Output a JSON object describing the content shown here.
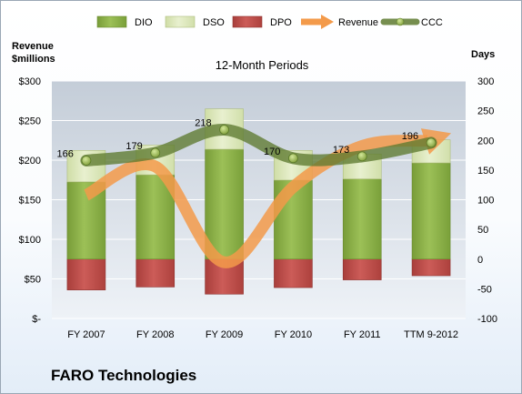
{
  "company": "FARO Technologies",
  "chart_data": {
    "type": "bar",
    "subtitle": "12-Month Periods",
    "categories": [
      "FY 2007",
      "FY 2008",
      "FY 2009",
      "FY 2010",
      "FY 2011",
      "TTM 9-2012"
    ],
    "left_axis": {
      "title_lines": [
        "Revenue",
        "$millions"
      ],
      "ticks": [
        0,
        50,
        100,
        150,
        200,
        250,
        300
      ],
      "tick_labels": [
        "$-",
        "$50",
        "$100",
        "$150",
        "$200",
        "$250",
        "$300"
      ],
      "range": [
        0,
        300
      ]
    },
    "right_axis": {
      "title": "Days",
      "ticks": [
        -100,
        -50,
        0,
        50,
        100,
        150,
        200,
        250,
        300
      ],
      "tick_labels": [
        "-100",
        "-50",
        "0",
        "50",
        "100",
        "150",
        "200",
        "250",
        "300"
      ],
      "range": [
        -100,
        300
      ]
    },
    "series": [
      {
        "name": "DIO",
        "axis": "right",
        "kind": "stacked-bar",
        "color": "#8cb04a",
        "values": [
          130,
          142,
          185,
          133,
          135,
          162
        ]
      },
      {
        "name": "DSO",
        "axis": "right",
        "kind": "stacked-bar",
        "color": "#d8e6b3",
        "values": [
          53,
          50,
          68,
          50,
          42,
          39
        ]
      },
      {
        "name": "DPO",
        "axis": "right",
        "kind": "negative-bar",
        "color": "#c0504d",
        "values": [
          -52,
          -47,
          -59,
          -48,
          -35,
          -28
        ]
      },
      {
        "name": "Revenue",
        "axis": "left",
        "kind": "arrow-line",
        "color": "#f39a4a",
        "values": [
          156,
          192,
          71,
          166,
          218,
          226
        ]
      },
      {
        "name": "CCC",
        "axis": "right",
        "kind": "line",
        "color": "#5e7a30",
        "values": [
          166,
          179,
          218,
          170,
          173,
          196
        ],
        "labels": [
          "166",
          "179",
          "218",
          "170",
          "173",
          "196"
        ]
      }
    ],
    "grid": true,
    "legend_position": "top"
  }
}
